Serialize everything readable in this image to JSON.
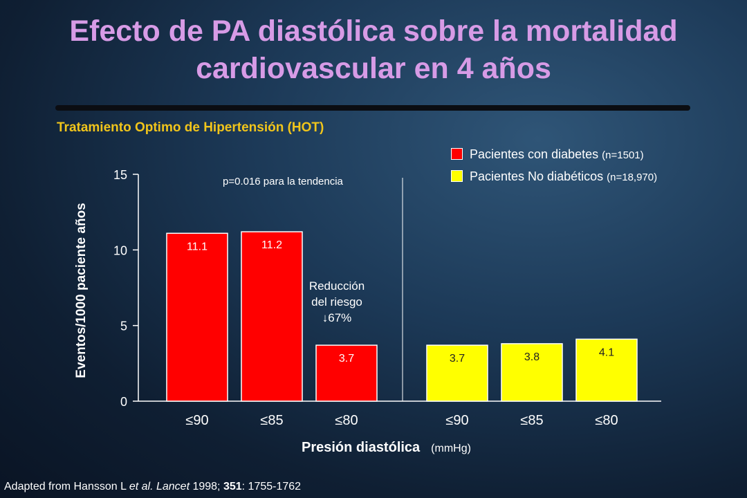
{
  "title_line1": "Efecto de PA diastólica sobre la mortalidad",
  "title_line2": "cardiovascular en 4 años",
  "subtitle": "Tratamiento Optimo de Hipertensión (HOT)",
  "legend": [
    {
      "label": "Pacientes con diabetes",
      "n": "(n=1501)",
      "color": "#ff0000"
    },
    {
      "label": "Pacientes No diabéticos",
      "n": "(n=18,970)",
      "color": "#ffff00"
    }
  ],
  "p_note": "p=0.016 para la tendencia",
  "annotation": {
    "line1": "Reducción",
    "line2": "del riesgo",
    "line3": "↓67%"
  },
  "credit": {
    "pre": "Adapted from Hansson L ",
    "italic": "et al. Lancet",
    "mid": " 1998; ",
    "bold": "351",
    "post": ": 1755-1762"
  },
  "chart_data": {
    "type": "bar",
    "title": "Efecto de PA diastólica sobre la mortalidad cardiovascular en 4 años",
    "ylabel": "Eventos/1000 paciente años",
    "xlabel": "Presión diastólica",
    "xunit": "(mmHg)",
    "ylim": [
      0,
      15
    ],
    "yticks": [
      0,
      5,
      10,
      15
    ],
    "categories": [
      "≤90",
      "≤85",
      "≤80"
    ],
    "series": [
      {
        "name": "Pacientes con diabetes",
        "color": "#ff0000",
        "values": [
          11.1,
          11.2,
          3.7
        ]
      },
      {
        "name": "Pacientes No diabéticos",
        "color": "#ffff00",
        "values": [
          3.7,
          3.8,
          4.1
        ]
      }
    ],
    "grid": false,
    "legend_position": "top-right"
  }
}
